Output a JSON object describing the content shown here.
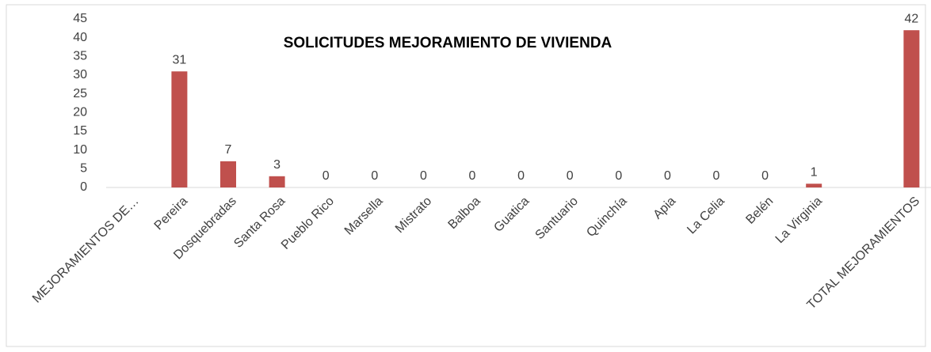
{
  "chart_data": {
    "type": "bar",
    "title": "SOLICITUDES MEJORAMIENTO DE VIVIENDA",
    "categories": [
      "MEJORAMIENTOS DE…",
      "Pereira",
      "Dosquebradas",
      "Santa Rosa",
      "Pueblo Rico",
      "Marsella",
      "Mistrato",
      "Balboa",
      "Guatica",
      "Santuario",
      "Quinchía",
      "Apia",
      "La Celia",
      "Belén",
      "La Virginia",
      null,
      "TOTAL MEJORAMIENTOS"
    ],
    "values": [
      null,
      31,
      7,
      3,
      0,
      0,
      0,
      0,
      0,
      0,
      0,
      0,
      0,
      0,
      1,
      null,
      42
    ],
    "color": "#c0504d",
    "ylim": [
      0,
      45
    ],
    "yticks": [
      0,
      5,
      10,
      15,
      20,
      25,
      30,
      35,
      40,
      45
    ],
    "grid": false
  }
}
